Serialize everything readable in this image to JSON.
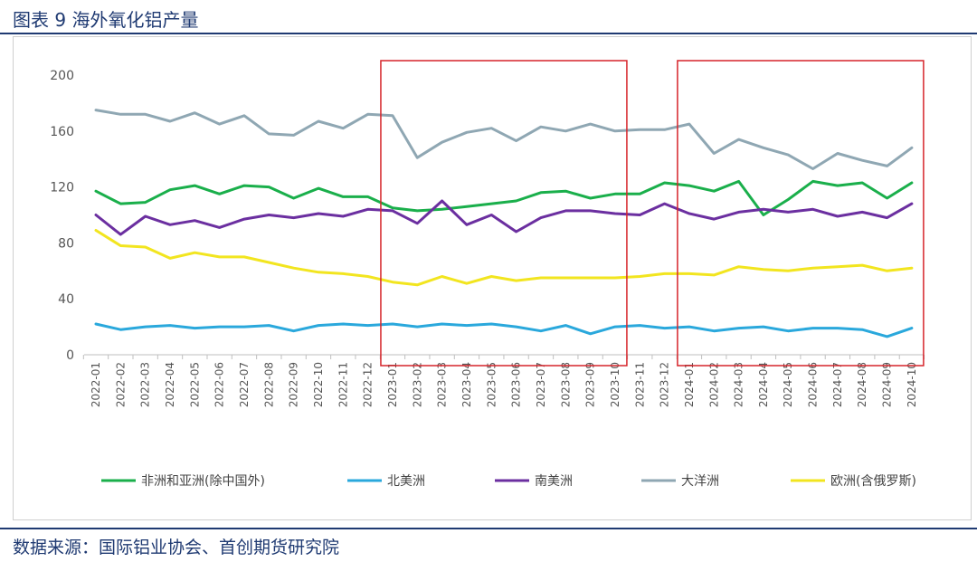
{
  "figure": {
    "title": "图表 9 海外氧化铝产量",
    "source": "数据来源：国际铝业协会、首创期货研究院"
  },
  "chart_data": {
    "type": "line",
    "ylim": [
      0,
      200
    ],
    "yticks": [
      0,
      40,
      80,
      120,
      160,
      200
    ],
    "grid": false,
    "legend_position": "bottom",
    "categories": [
      "2022-01",
      "2022-02",
      "2022-03",
      "2022-04",
      "2022-05",
      "2022-06",
      "2022-07",
      "2022-08",
      "2022-09",
      "2022-10",
      "2022-11",
      "2022-12",
      "2023-01",
      "2023-02",
      "2023-03",
      "2023-04",
      "2023-05",
      "2023-06",
      "2023-07",
      "2023-08",
      "2023-09",
      "2023-10",
      "2023-11",
      "2023-12",
      "2024-01",
      "2024-02",
      "2024-03",
      "2024-04",
      "2024-05",
      "2024-06",
      "2024-07",
      "2024-08",
      "2024-09",
      "2024-10"
    ],
    "series": [
      {
        "name": "非洲和亚洲(除中国外)",
        "color": "#1aaf4b",
        "values": [
          117,
          108,
          109,
          118,
          121,
          115,
          121,
          120,
          112,
          119,
          113,
          113,
          105,
          103,
          104,
          106,
          108,
          110,
          116,
          117,
          112,
          115,
          115,
          123,
          121,
          117,
          124,
          100,
          111,
          124,
          121,
          123,
          112,
          123
        ]
      },
      {
        "name": "北美洲",
        "color": "#2aa8dc",
        "values": [
          22,
          18,
          20,
          21,
          19,
          20,
          20,
          21,
          17,
          21,
          22,
          21,
          22,
          20,
          22,
          21,
          22,
          20,
          17,
          21,
          15,
          20,
          21,
          19,
          20,
          17,
          19,
          20,
          17,
          19,
          19,
          18,
          13,
          19
        ]
      },
      {
        "name": "南美洲",
        "color": "#6b2fa0",
        "values": [
          100,
          86,
          99,
          93,
          96,
          91,
          97,
          100,
          98,
          101,
          99,
          104,
          103,
          94,
          110,
          93,
          100,
          88,
          98,
          103,
          103,
          101,
          100,
          108,
          101,
          97,
          102,
          104,
          102,
          104,
          99,
          102,
          98,
          108
        ]
      },
      {
        "name": "大洋洲",
        "color": "#8fa7b3",
        "values": [
          175,
          172,
          172,
          167,
          173,
          165,
          171,
          158,
          157,
          167,
          162,
          172,
          171,
          141,
          152,
          159,
          162,
          153,
          163,
          160,
          165,
          160,
          161,
          161,
          165,
          144,
          154,
          148,
          143,
          133,
          144,
          139,
          135,
          148
        ]
      },
      {
        "name": "欧洲(含俄罗斯)",
        "color": "#f2e51f",
        "values": [
          89,
          78,
          77,
          69,
          73,
          70,
          70,
          66,
          62,
          59,
          58,
          56,
          52,
          50,
          56,
          51,
          56,
          53,
          55,
          55,
          55,
          55,
          56,
          58,
          58,
          57,
          63,
          61,
          60,
          62,
          63,
          64,
          60,
          62
        ]
      }
    ],
    "highlights": [
      {
        "from": "2023-01",
        "to": "2023-10",
        "color": "#d6242a"
      },
      {
        "from": "2024-01",
        "to": "2024-10",
        "color": "#d6242a"
      }
    ]
  }
}
